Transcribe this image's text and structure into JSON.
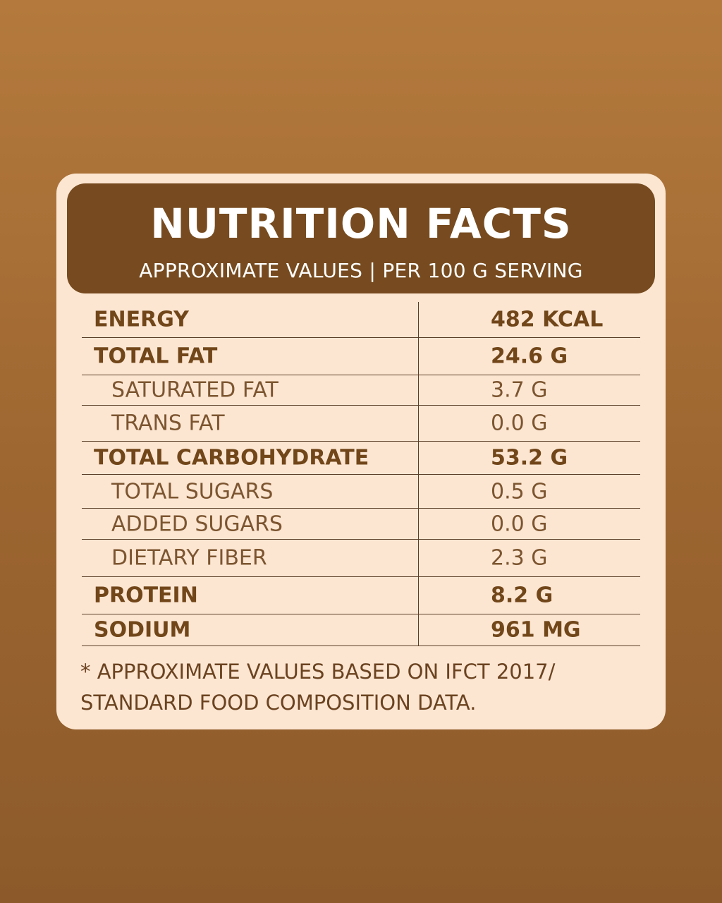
{
  "header": {
    "title": "NUTRITION FACTS",
    "subtitle": "APPROXIMATE VALUES | PER 100 G SERVING"
  },
  "rows": [
    {
      "label": "ENERGY",
      "value": "482 KCAL",
      "style": "bold"
    },
    {
      "label": "TOTAL FAT",
      "value": "24.6 G",
      "style": "bold"
    },
    {
      "label": "SATURATED FAT",
      "value": "3.7 G",
      "style": "sub"
    },
    {
      "label": "TRANS FAT",
      "value": "0.0 G",
      "style": "sub"
    },
    {
      "label": "TOTAL CARBOHYDRATE",
      "value": "53.2 G",
      "style": "bold"
    },
    {
      "label": "TOTAL SUGARS",
      "value": "0.5 G",
      "style": "sub"
    },
    {
      "label": "ADDED SUGARS",
      "value": "0.0 G",
      "style": "sub"
    },
    {
      "label": "DIETARY FIBER",
      "value": "2.3 G",
      "style": "sub"
    },
    {
      "label": "PROTEIN",
      "value": "8.2 G",
      "style": "bold"
    },
    {
      "label": "SODIUM",
      "value": "961 MG",
      "style": "bold"
    }
  ],
  "footnote": {
    "line1": "* APPROXIMATE VALUES BASED ON IFCT 2017/",
    "line2": "STANDARD FOOD COMPOSITION DATA."
  },
  "colors": {
    "background": "#a56c35",
    "card": "#fce6d2",
    "header": "#774b1f",
    "text": "#6b4320"
  }
}
